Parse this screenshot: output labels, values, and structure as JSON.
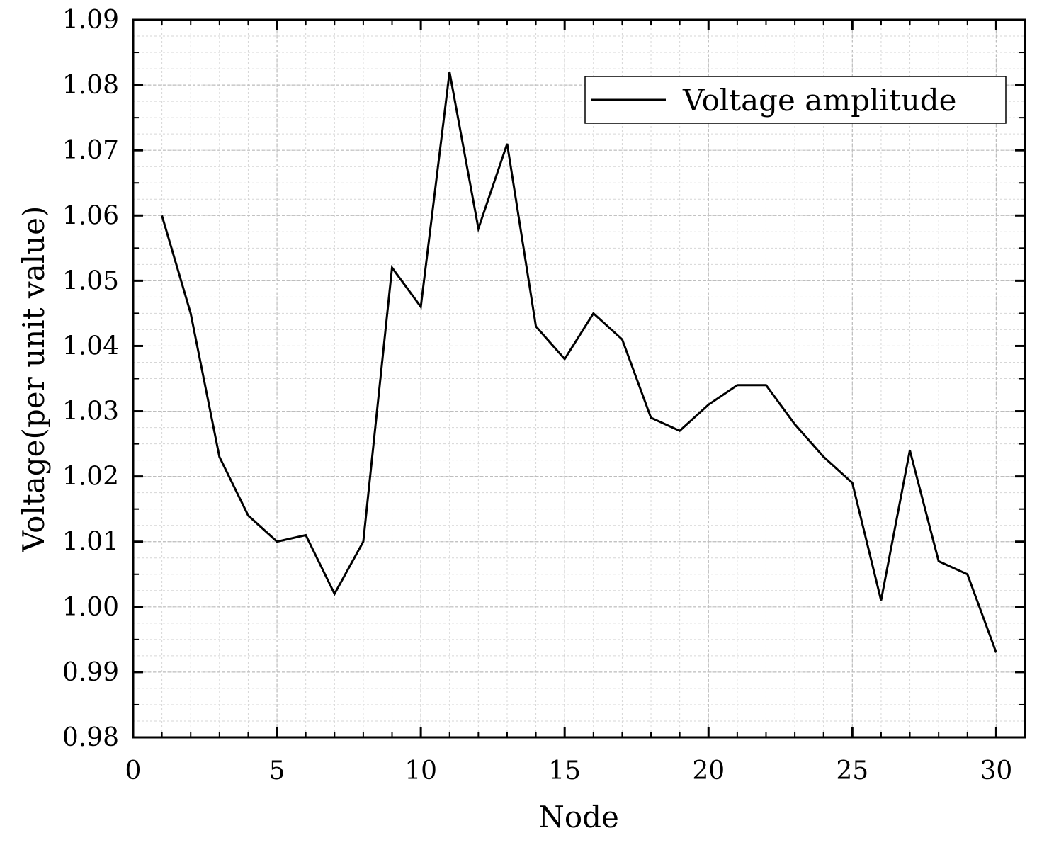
{
  "chart_data": {
    "type": "line",
    "title": "",
    "xlabel": "Node",
    "ylabel": "Voltage(per unit value)",
    "xlim": [
      0,
      31
    ],
    "ylim": [
      0.98,
      1.09
    ],
    "x_ticks": [
      0,
      5,
      10,
      15,
      20,
      25,
      30
    ],
    "x_tick_labels": [
      "0",
      "5",
      "10",
      "15",
      "20",
      "25",
      "30"
    ],
    "y_ticks": [
      0.98,
      0.99,
      1.0,
      1.01,
      1.02,
      1.03,
      1.04,
      1.05,
      1.06,
      1.07,
      1.08,
      1.09
    ],
    "y_tick_labels": [
      "0.98",
      "0.99",
      "1.00",
      "1.01",
      "1.02",
      "1.03",
      "1.04",
      "1.05",
      "1.06",
      "1.07",
      "1.08",
      "1.09"
    ],
    "grid": true,
    "legend_position": "top-right",
    "series": [
      {
        "name": "Voltage amplitude",
        "color": "#000000",
        "x": [
          1,
          2,
          3,
          4,
          5,
          6,
          7,
          8,
          9,
          10,
          11,
          12,
          13,
          14,
          15,
          16,
          17,
          18,
          19,
          20,
          21,
          22,
          23,
          24,
          25,
          26,
          27,
          28,
          29,
          30
        ],
        "y": [
          1.06,
          1.045,
          1.023,
          1.014,
          1.01,
          1.011,
          1.002,
          1.01,
          1.052,
          1.046,
          1.082,
          1.058,
          1.071,
          1.043,
          1.038,
          1.045,
          1.041,
          1.029,
          1.027,
          1.031,
          1.034,
          1.034,
          1.028,
          1.023,
          1.019,
          1.001,
          1.024,
          1.007,
          1.005,
          0.993
        ]
      }
    ]
  }
}
